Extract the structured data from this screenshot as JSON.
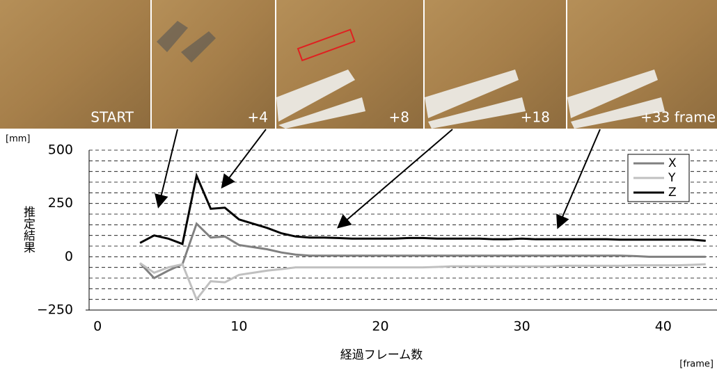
{
  "frames": [
    "START",
    "+4",
    "+8",
    "+18",
    "+33 frame"
  ],
  "chart_data": {
    "type": "line",
    "y_label": "推定結果",
    "y_unit": "[mm]",
    "x_label": "経過フレーム数",
    "x_unit": "[frame]",
    "x": [
      3,
      4,
      5,
      6,
      7,
      8,
      9,
      10,
      11,
      12,
      13,
      14,
      15,
      16,
      17,
      18,
      19,
      20,
      21,
      22,
      23,
      24,
      25,
      26,
      27,
      28,
      29,
      30,
      31,
      32,
      33,
      34,
      35,
      36,
      37,
      38,
      39,
      40,
      41,
      42,
      43
    ],
    "series": [
      {
        "name": "X",
        "color": "#808080",
        "values": [
          -30,
          -100,
          -65,
          -35,
          155,
          90,
          95,
          55,
          45,
          35,
          20,
          10,
          5,
          5,
          5,
          5,
          5,
          5,
          5,
          5,
          5,
          5,
          5,
          5,
          5,
          5,
          5,
          5,
          5,
          5,
          5,
          5,
          5,
          5,
          5,
          3,
          0,
          0,
          0,
          0,
          0
        ]
      },
      {
        "name": "Y",
        "color": "#c0c0c0",
        "values": [
          -30,
          -75,
          -50,
          -35,
          -200,
          -115,
          -120,
          -85,
          -75,
          -65,
          -58,
          -50,
          -50,
          -50,
          -50,
          -50,
          -50,
          -50,
          -50,
          -50,
          -50,
          -48,
          -45,
          -45,
          -45,
          -45,
          -45,
          -45,
          -45,
          -45,
          -42,
          -42,
          -42,
          -42,
          -42,
          -40,
          -40,
          -40,
          -40,
          -38,
          -35
        ]
      },
      {
        "name": "Z",
        "color": "#000000",
        "values": [
          65,
          100,
          85,
          60,
          380,
          225,
          230,
          175,
          155,
          135,
          110,
          95,
          90,
          90,
          88,
          85,
          85,
          85,
          85,
          88,
          88,
          85,
          85,
          85,
          85,
          82,
          82,
          85,
          82,
          82,
          82,
          82,
          82,
          82,
          80,
          80,
          80,
          80,
          80,
          80,
          75
        ]
      }
    ],
    "xlim": [
      -0.6,
      43.8
    ],
    "ylim": [
      -250,
      500
    ],
    "xticks": [
      0,
      10,
      20,
      30,
      40
    ],
    "yticks": [
      500,
      250,
      0,
      {
        "value": -250,
        "label": "−250"
      }
    ],
    "minor_yticks": [
      -200,
      -150,
      -100,
      -50,
      50,
      100,
      150,
      200,
      300,
      350,
      400,
      450
    ],
    "grid": true,
    "legend": "upper right"
  }
}
